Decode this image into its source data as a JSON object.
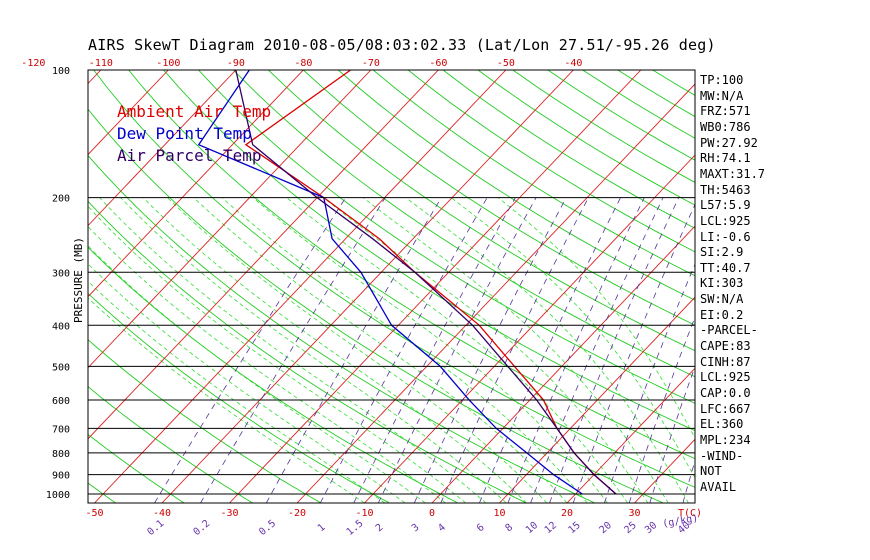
{
  "title": "AIRS SkewT Diagram 2010-08-05/08:03:02.33 (Lat/Lon 27.51/-95.26 deg)",
  "legend": [
    {
      "label": "Ambient Air Temp",
      "color": "#dd0000"
    },
    {
      "label": "Dew Point Temp",
      "color": "#0000cc"
    },
    {
      "label": "Air Parcel Temp",
      "color": "#330066"
    }
  ],
  "indices": [
    "TP:100",
    "MW:N/A",
    "FRZ:571",
    "WB0:786",
    "PW:27.92",
    "RH:74.1",
    "MAXT:31.7",
    "TH:5463",
    "L57:5.9",
    "LCL:925",
    "LI:-0.6",
    "SI:2.9",
    "TT:40.7",
    "KI:303",
    "SW:N/A",
    "EI:0.2",
    "-PARCEL-",
    "CAPE:83",
    "CINH:87",
    "LCL:925",
    "CAP:0.0",
    "LFC:667",
    "EL:360",
    "MPL:234",
    "-WIND-",
    "NOT",
    "AVAIL"
  ],
  "chart_data": {
    "type": "line",
    "ylabel": "PRESSURE (MB)",
    "pressure_ticks": [
      100,
      200,
      300,
      400,
      500,
      600,
      700,
      800,
      900,
      1000
    ],
    "top_temp_ticks": [
      -120,
      -110,
      -100,
      -90,
      -80,
      -70,
      -60,
      -50,
      -40
    ],
    "bottom_temp_ticks": [
      -50,
      -40,
      -30,
      -20,
      -10,
      0,
      10,
      20,
      30
    ],
    "bottom_unit": "T(C)",
    "mixing_ratio_ticks": [
      "0.1",
      "0.2",
      "0.5",
      "1",
      "1.5",
      "2",
      "3",
      "4",
      "6",
      "8",
      "10",
      "12",
      "15",
      "20",
      "25",
      "30",
      "40"
    ],
    "mixing_unit": "(g/kg)",
    "series": [
      {
        "name": "Ambient Air Temp",
        "points": [
          [
            100,
            -73
          ],
          [
            150,
            -78
          ],
          [
            200,
            -59
          ],
          [
            250,
            -45
          ],
          [
            300,
            -35
          ],
          [
            400,
            -18
          ],
          [
            500,
            -7
          ],
          [
            600,
            2
          ],
          [
            700,
            8
          ],
          [
            800,
            14
          ],
          [
            900,
            20
          ],
          [
            1000,
            26
          ]
        ]
      },
      {
        "name": "Dew Point Temp",
        "points": [
          [
            100,
            -88
          ],
          [
            150,
            -85
          ],
          [
            200,
            -59
          ],
          [
            250,
            -52
          ],
          [
            300,
            -43
          ],
          [
            400,
            -31
          ],
          [
            500,
            -18
          ],
          [
            600,
            -9
          ],
          [
            700,
            -1
          ],
          [
            800,
            7
          ],
          [
            900,
            14
          ],
          [
            1000,
            21
          ]
        ]
      },
      {
        "name": "Air Parcel Temp",
        "points": [
          [
            100,
            -90
          ],
          [
            150,
            -77
          ],
          [
            200,
            -60
          ],
          [
            250,
            -46
          ],
          [
            300,
            -35
          ],
          [
            400,
            -19
          ],
          [
            500,
            -8
          ],
          [
            600,
            1
          ],
          [
            700,
            8
          ],
          [
            800,
            14
          ],
          [
            900,
            20
          ],
          [
            1000,
            26
          ]
        ]
      }
    ]
  }
}
